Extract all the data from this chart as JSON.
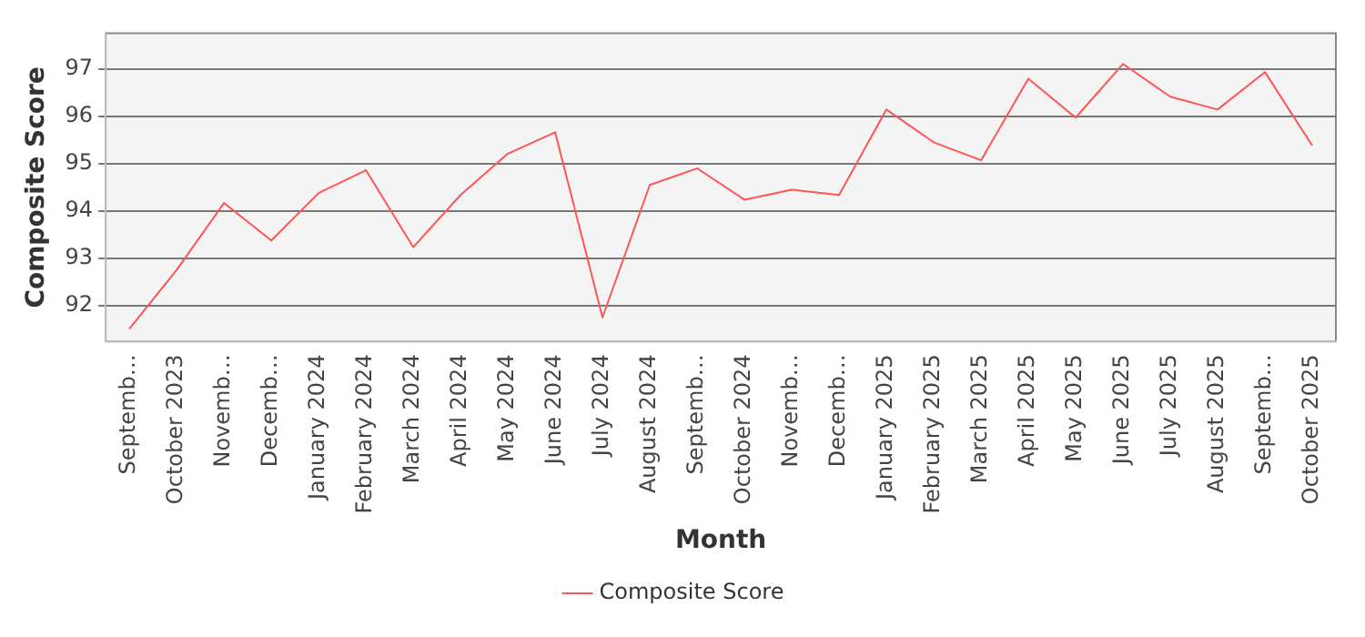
{
  "chart_data": {
    "type": "line",
    "xlabel": "Month",
    "ylabel": "Composite Score",
    "categories": [
      "Septemb…",
      "October 2023",
      "Novemb…",
      "Decemb…",
      "January 2024",
      "February 2024",
      "March 2024",
      "April 2024",
      "May 2024",
      "June 2024",
      "July 2024",
      "August 2024",
      "Septemb…",
      "October 2024",
      "Novemb…",
      "Decemb…",
      "January 2025",
      "February 2025",
      "March 2025",
      "April 2025",
      "May 2025",
      "June 2025",
      "July 2025",
      "August 2025",
      "Septemb…",
      "October 2025"
    ],
    "series": [
      {
        "name": "Composite Score",
        "color": "#ff5555",
        "values": [
          91.52,
          92.76,
          94.17,
          93.38,
          94.38,
          94.86,
          93.24,
          94.34,
          95.21,
          95.66,
          91.76,
          94.55,
          94.9,
          94.24,
          94.45,
          94.34,
          96.14,
          95.45,
          95.07,
          96.79,
          95.97,
          97.1,
          96.41,
          96.14,
          96.93,
          95.38
        ]
      }
    ],
    "ylim": [
      91.25,
      97.75
    ],
    "yticks": [
      92,
      93,
      94,
      95,
      96,
      97
    ],
    "grid": "y",
    "legend": "bottom",
    "marker": "none",
    "line_style": "solid"
  }
}
